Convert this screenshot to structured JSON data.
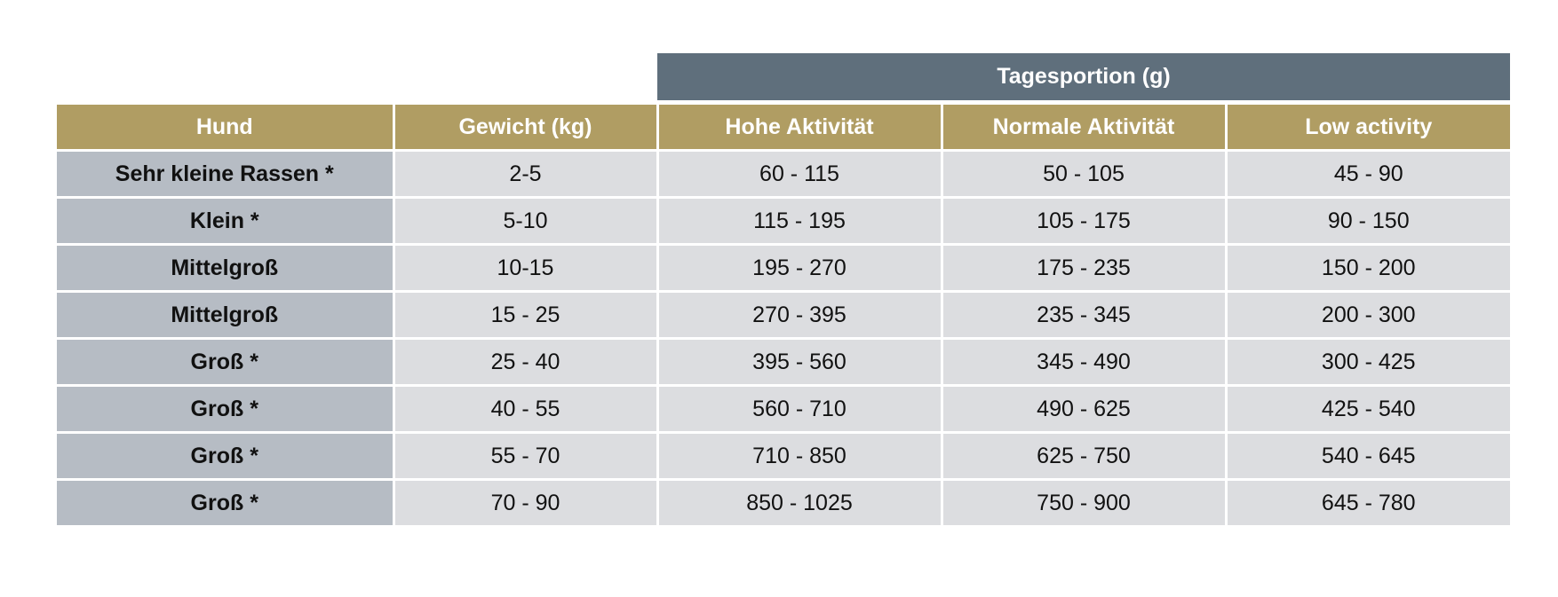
{
  "group_header": "Tagesportion (g)",
  "columns": [
    "Hund",
    "Gewicht (kg)",
    "Hohe Aktivität",
    "Normale Aktivität",
    "Low activity"
  ],
  "rows": [
    [
      "Sehr kleine Rassen *",
      "2-5",
      "60 - 115",
      "50 - 105",
      "45 - 90"
    ],
    [
      "Klein *",
      "5-10",
      "115 - 195",
      "105 - 175",
      "90 - 150"
    ],
    [
      "Mittelgroß",
      "10-15",
      "195 - 270",
      "175 - 235",
      "150 - 200"
    ],
    [
      "Mittelgroß",
      "15 - 25",
      "270 - 395",
      "235 - 345",
      "200 - 300"
    ],
    [
      "Groß *",
      "25 - 40",
      "395 - 560",
      "345 - 490",
      "300 - 425"
    ],
    [
      "Groß *",
      "40 - 55",
      "560 - 710",
      "490 - 625",
      "425 - 540"
    ],
    [
      "Groß *",
      "55 - 70",
      "710 - 850",
      "625 - 750",
      "540 - 645"
    ],
    [
      "Groß *",
      "70 - 90",
      "850 - 1025",
      "750 - 900",
      "645 - 780"
    ]
  ],
  "colors": {
    "header": "#b09d63",
    "group_header": "#5f6f7c",
    "first_column": "#b6bcc4",
    "cell": "#dcdde0"
  }
}
